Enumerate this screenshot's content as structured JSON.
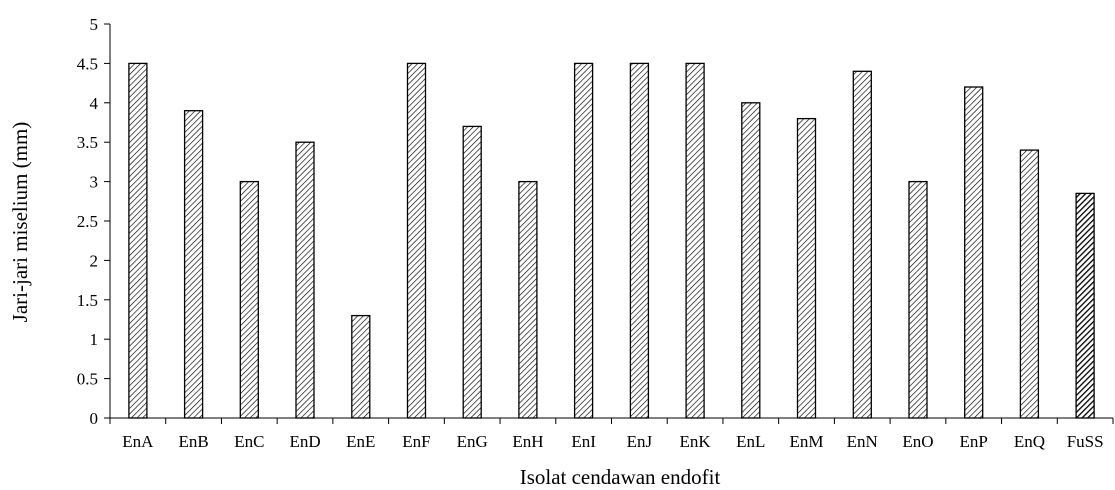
{
  "chart_data": {
    "type": "bar",
    "xlabel": "Isolat cendawan endofit",
    "ylabel": "Jari-jari miselium (mm)",
    "ylim": [
      0,
      5
    ],
    "yticks": [
      0,
      0.5,
      1,
      1.5,
      2,
      2.5,
      3,
      3.5,
      4,
      4.5,
      5
    ],
    "ytick_labels": [
      "0",
      "0.5",
      "1",
      "1.5",
      "2",
      "2.5",
      "3",
      "3.5",
      "4",
      "4.5",
      "5"
    ],
    "categories": [
      "EnA",
      "EnB",
      "EnC",
      "EnD",
      "EnE",
      "EnF",
      "EnG",
      "EnH",
      "EnI",
      "EnJ",
      "EnK",
      "EnL",
      "EnM",
      "EnN",
      "EnO",
      "EnP",
      "EnQ",
      "FuSS"
    ],
    "values": [
      4.5,
      3.9,
      3.0,
      3.5,
      1.3,
      4.5,
      3.7,
      3.0,
      4.5,
      4.5,
      4.5,
      4.0,
      3.8,
      4.4,
      3.0,
      4.2,
      3.4,
      2.85
    ],
    "bar_patterns": [
      "light-hatch",
      "light-hatch",
      "light-hatch",
      "light-hatch",
      "light-hatch",
      "light-hatch",
      "light-hatch",
      "light-hatch",
      "light-hatch",
      "light-hatch",
      "light-hatch",
      "light-hatch",
      "light-hatch",
      "light-hatch",
      "light-hatch",
      "light-hatch",
      "light-hatch",
      "dark-hatch"
    ],
    "grid": false,
    "legend": "none"
  }
}
